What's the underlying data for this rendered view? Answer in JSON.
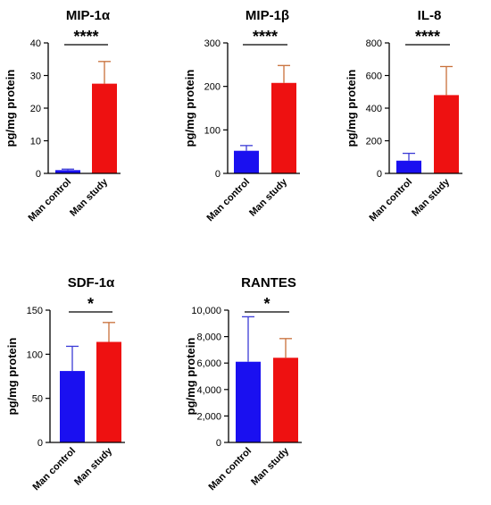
{
  "figure": {
    "colors": {
      "control": "#1a10f0",
      "study": "#ee1111",
      "error_control": "#3b3bd6",
      "error_study": "#c8703a",
      "text": "#000000"
    }
  },
  "chart_data": [
    {
      "type": "bar",
      "title": "MIP-1α",
      "ylabel": "pg/mg protein",
      "categories": [
        "Man control",
        "Man study"
      ],
      "values": [
        1,
        27.5
      ],
      "errors": [
        0.3,
        6.8
      ],
      "ylim": [
        0,
        40
      ],
      "yticks": [
        "0",
        "10",
        "20",
        "30",
        "40"
      ],
      "significance": "****",
      "grid": false
    },
    {
      "type": "bar",
      "title": "MIP-1β",
      "ylabel": "pg/mg protein",
      "categories": [
        "Man control",
        "Man study"
      ],
      "values": [
        52,
        208
      ],
      "errors": [
        12,
        40
      ],
      "ylim": [
        0,
        300
      ],
      "yticks": [
        "0",
        "100",
        "200",
        "300"
      ],
      "significance": "****",
      "grid": false
    },
    {
      "type": "bar",
      "title": "IL-8",
      "ylabel": "pg/mg protein",
      "categories": [
        "Man control",
        "Man study"
      ],
      "values": [
        78,
        480
      ],
      "errors": [
        45,
        175
      ],
      "ylim": [
        0,
        800
      ],
      "yticks": [
        "0",
        "200",
        "400",
        "600",
        "800"
      ],
      "significance": "****",
      "grid": false
    },
    {
      "type": "bar",
      "title": "SDF-1α",
      "ylabel": "pg/mg protein",
      "categories": [
        "Man control",
        "Man study"
      ],
      "values": [
        81,
        114
      ],
      "errors": [
        28,
        22
      ],
      "ylim": [
        0,
        150
      ],
      "yticks": [
        "0",
        "50",
        "100",
        "150"
      ],
      "significance": "*",
      "grid": false
    },
    {
      "type": "bar",
      "title": "RANTES",
      "ylabel": "pg/mg protein",
      "categories": [
        "Man control",
        "Man study"
      ],
      "values": [
        6100,
        6400
      ],
      "errors": [
        3400,
        1450
      ],
      "ylim": [
        0,
        10000
      ],
      "yticks": [
        "0",
        "2,000",
        "4,000",
        "6,000",
        "8,000",
        "10,000"
      ],
      "significance": "*",
      "grid": false
    }
  ]
}
